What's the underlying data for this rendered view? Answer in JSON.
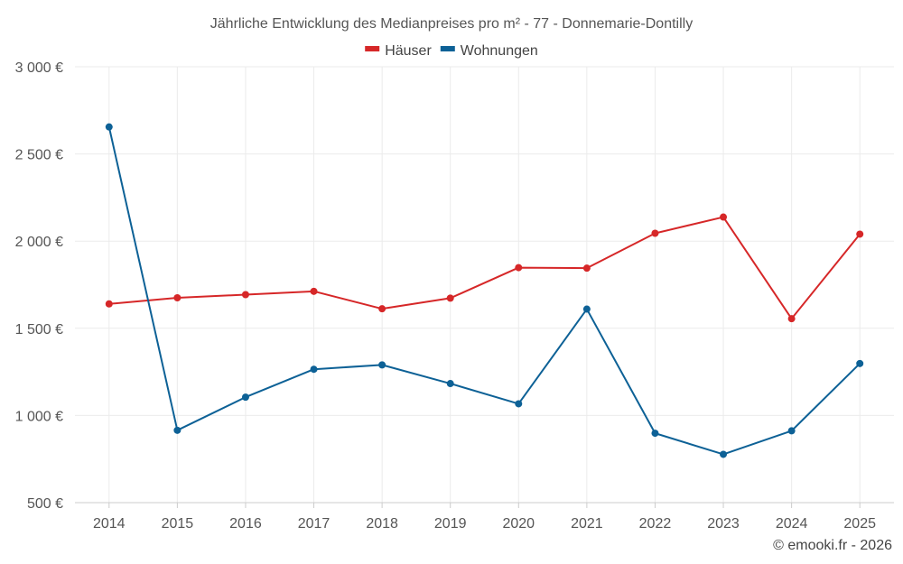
{
  "chart_data": {
    "type": "line",
    "title": "Jährliche Entwicklung des Medianpreises pro m² - 77 - Donnemarie-Dontilly",
    "xlabel": "",
    "ylabel": "",
    "categories": [
      "2014",
      "2015",
      "2016",
      "2017",
      "2018",
      "2019",
      "2020",
      "2021",
      "2022",
      "2023",
      "2024",
      "2025"
    ],
    "ylim": [
      500,
      3000
    ],
    "yticks": [
      500,
      1000,
      1500,
      2000,
      2500,
      3000
    ],
    "ytick_labels": [
      "500 €",
      "1 000 €",
      "1 500 €",
      "2 000 €",
      "2 500 €",
      "3 000 €"
    ],
    "grid": true,
    "legend_position": "top-center",
    "series": [
      {
        "name": "Häuser",
        "color": "#d62728",
        "values": [
          1640,
          1675,
          1693,
          1712,
          1612,
          1673,
          1848,
          1845,
          2045,
          2138,
          1555,
          2040
        ]
      },
      {
        "name": "Wohnungen",
        "color": "#0d6196",
        "values": [
          2655,
          915,
          1105,
          1265,
          1290,
          1183,
          1067,
          1610,
          898,
          777,
          912,
          1298
        ]
      }
    ],
    "credit": "© emooki.fr - 2026"
  }
}
